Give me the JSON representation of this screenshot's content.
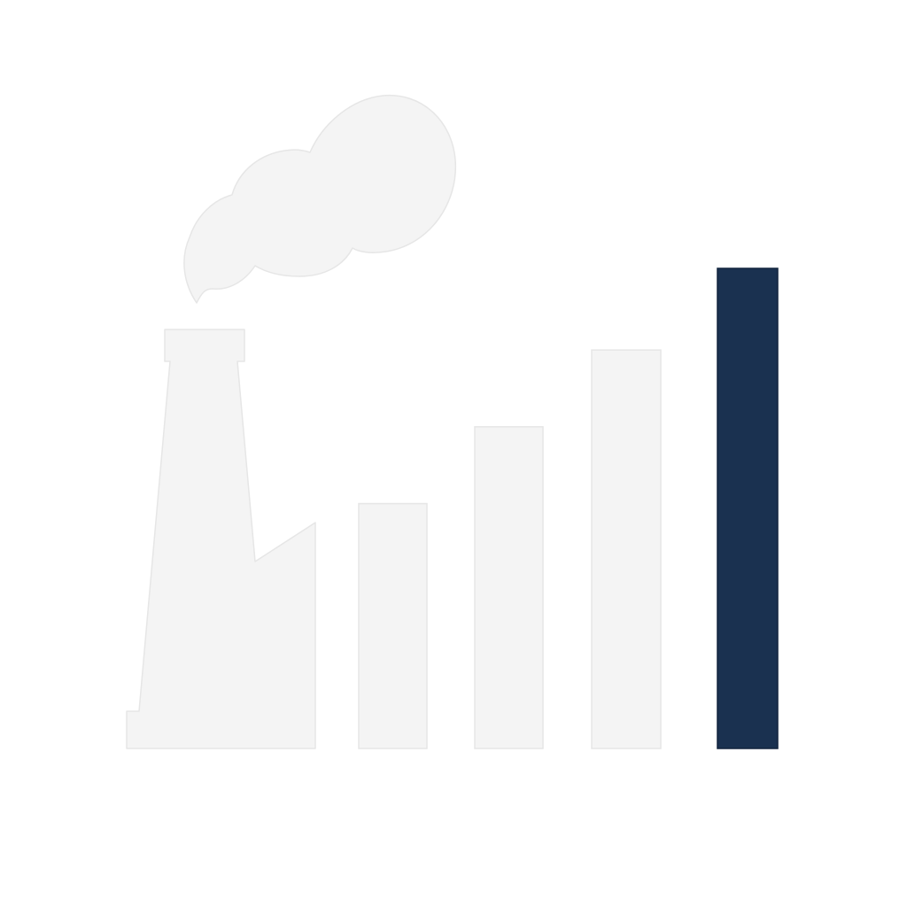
{
  "illustration": {
    "icon": "factory-emissions-bar-icon",
    "colors": {
      "background": "#ffffff",
      "shape_fill": "#f4f4f4",
      "shape_edge": "#e6e6e6",
      "accent_bar": "#1a3150",
      "accent_edge": "#12243d"
    },
    "bars": [
      {
        "name": "bar-1",
        "level": 0.51,
        "highlighted": false
      },
      {
        "name": "bar-2",
        "level": 0.67,
        "highlighted": false
      },
      {
        "name": "bar-3",
        "level": 0.83,
        "highlighted": false
      },
      {
        "name": "bar-4",
        "level": 1.0,
        "highlighted": true
      }
    ]
  }
}
